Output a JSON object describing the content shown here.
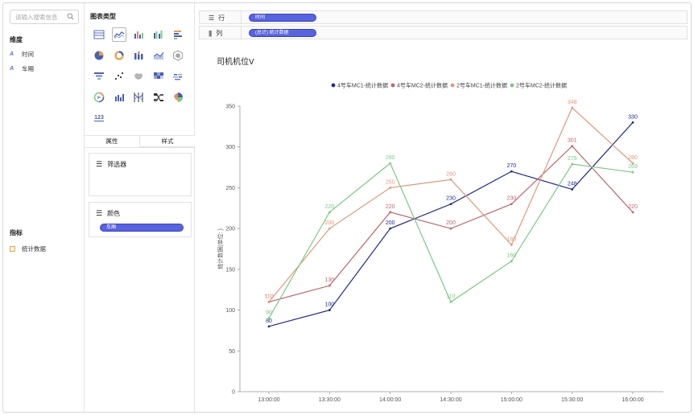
{
  "left": {
    "search_placeholder": "请输入搜索信息",
    "dimensions_title": "维度",
    "dimensions": [
      {
        "label": "时间",
        "icon": "text-field-icon"
      },
      {
        "label": "车厢",
        "icon": "text-field-icon"
      }
    ],
    "measures_title": "指标",
    "measures": [
      {
        "label": "统计数据",
        "icon": "calendar-field-icon"
      }
    ]
  },
  "middle": {
    "chart_types_title": "图表类型",
    "chart_types": [
      "table-icon",
      "line-chart-icon",
      "bar-chart-icon",
      "grouped-bar-icon",
      "horizontal-bar-icon",
      "pie-chart-icon",
      "donut-chart-icon",
      "stacked-bar-icon",
      "area-chart-icon",
      "radar-icon",
      "funnel-icon",
      "scatter-icon",
      "map-icon",
      "heatmap-icon",
      "wordcloud-icon",
      "gauge-icon",
      "combo-chart-icon",
      "parallel-icon",
      "sankey-icon",
      "rose-chart-icon",
      "number-card-icon"
    ],
    "number_card_glyph": "123",
    "selected_chart_type": "line-chart-icon",
    "tabs": [
      "属性",
      "样式"
    ],
    "filter_title": "筛选器",
    "color_title": "颜色",
    "color_pill": "车厢"
  },
  "shelves": {
    "row_label": "行",
    "row_pill": "时间",
    "column_label": "列",
    "column_pill": "(总计) 统计数据"
  },
  "colors": {
    "pill": "#5863e0",
    "series": [
      "#1f2a8c",
      "#c0646a",
      "#e0987a",
      "#7cc886"
    ]
  },
  "chart_data": {
    "type": "line",
    "title": "司机机位V",
    "ylabel": "统计数据(单位: )",
    "xlabel": "",
    "x": [
      "13:00:00",
      "13:30:00",
      "14:00:00",
      "14:30:00",
      "15:00:00",
      "15:30:00",
      "16:00:00"
    ],
    "ylim": [
      0,
      350
    ],
    "yticks": [
      0,
      50,
      100,
      150,
      200,
      250,
      300,
      350
    ],
    "legend_position": "top-center",
    "grid": false,
    "series": [
      {
        "name": "4号车MC1-统计数据",
        "color": "#1f2a8c",
        "values": [
          80,
          100,
          200,
          230,
          270,
          248,
          330
        ]
      },
      {
        "name": "4号车MC2-统计数据",
        "color": "#c0646a",
        "values": [
          110,
          130,
          220,
          200,
          230,
          301,
          220
        ]
      },
      {
        "name": "2号车MC1-统计数据",
        "color": "#e0987a",
        "values": [
          110,
          200,
          250,
          260,
          180,
          348,
          280
        ]
      },
      {
        "name": "2号车MC2-统计数据",
        "color": "#7cc886",
        "values": [
          90,
          220,
          280,
          110,
          160,
          279,
          269
        ]
      }
    ]
  }
}
